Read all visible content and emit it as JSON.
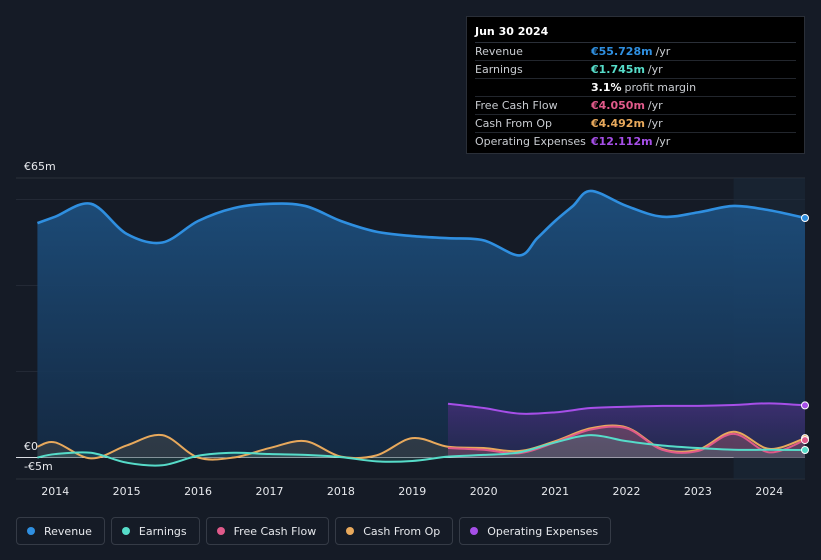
{
  "chart_data": {
    "type": "area",
    "currency": "€",
    "y_axis": {
      "top_label": "€65m",
      "zero_label": "€0",
      "bottom_label": "-€5m",
      "ylim": [
        -5,
        65
      ]
    },
    "x_ticks": [
      "2014",
      "2015",
      "2016",
      "2017",
      "2018",
      "2019",
      "2020",
      "2021",
      "2022",
      "2023",
      "2024"
    ],
    "series": [
      {
        "name": "Revenue",
        "color": "#2f8fe0",
        "x": [
          2013.75,
          2014.0,
          2014.5,
          2015.0,
          2015.5,
          2016.0,
          2016.5,
          2017.0,
          2017.5,
          2018.0,
          2018.5,
          2019.0,
          2019.5,
          2020.0,
          2020.5,
          2020.75,
          2021.0,
          2021.25,
          2021.5,
          2022.0,
          2022.5,
          2023.0,
          2023.5,
          2024.0,
          2024.5
        ],
        "values": [
          54.5,
          56,
          59,
          52,
          50,
          55,
          58,
          59,
          58.5,
          55,
          52.5,
          51.5,
          51,
          50.5,
          47,
          51,
          55,
          58.5,
          62,
          58.5,
          56,
          57,
          58.5,
          57.5,
          55.7
        ]
      },
      {
        "name": "Earnings",
        "color": "#56dcc9",
        "x": [
          2013.75,
          2014.0,
          2014.5,
          2015.0,
          2015.5,
          2016.0,
          2016.5,
          2017.0,
          2017.5,
          2018.0,
          2018.5,
          2019.0,
          2019.5,
          2020.0,
          2020.5,
          2021.0,
          2021.5,
          2022.0,
          2022.5,
          2023.0,
          2023.5,
          2024.0,
          2024.5
        ],
        "values": [
          0,
          0.8,
          1.1,
          -1.2,
          -1.8,
          0.4,
          1.1,
          0.8,
          0.6,
          0.1,
          -0.9,
          -0.8,
          0.2,
          0.6,
          1.2,
          3.5,
          5.2,
          3.8,
          2.8,
          2.2,
          1.8,
          1.8,
          1.745
        ]
      },
      {
        "name": "Free Cash Flow",
        "color": "#e05a8a",
        "x": [
          2019.5,
          2020.0,
          2020.5,
          2021.0,
          2021.5,
          2022.0,
          2022.5,
          2023.0,
          2023.5,
          2024.0,
          2024.5
        ],
        "values": [
          2.2,
          1.8,
          1.0,
          3.5,
          6.5,
          6.8,
          1.8,
          1.5,
          5.5,
          1.2,
          4.05
        ]
      },
      {
        "name": "Cash From Op",
        "color": "#e8a95c",
        "x": [
          2013.75,
          2014.0,
          2014.5,
          2015.0,
          2015.5,
          2016.0,
          2016.5,
          2017.0,
          2017.5,
          2018.0,
          2018.5,
          2019.0,
          2019.5,
          2020.0,
          2020.5,
          2021.0,
          2021.5,
          2022.0,
          2022.5,
          2023.0,
          2023.5,
          2024.0,
          2024.5
        ],
        "values": [
          2.5,
          3.5,
          -0.2,
          2.8,
          5.2,
          0,
          0,
          2.2,
          3.8,
          0.2,
          0.5,
          4.5,
          2.5,
          2.2,
          1.5,
          3.8,
          6.8,
          7.0,
          2.0,
          1.8,
          6.0,
          2.0,
          4.492
        ]
      },
      {
        "name": "Operating Expenses",
        "color": "#a64fe8",
        "x": [
          2019.5,
          2020.0,
          2020.5,
          2021.0,
          2021.5,
          2022.0,
          2022.5,
          2023.0,
          2023.5,
          2024.0,
          2024.5
        ],
        "values": [
          12.5,
          11.5,
          10.2,
          10.5,
          11.5,
          11.8,
          12.0,
          12.0,
          12.2,
          12.6,
          12.112
        ]
      }
    ]
  },
  "tooltip": {
    "date": "Jun 30 2024",
    "rows": [
      {
        "label": "Revenue",
        "value": "€55.728m",
        "unit": "/yr",
        "color": "#2f8fe0"
      },
      {
        "label": "Earnings",
        "value": "€1.745m",
        "unit": "/yr",
        "color": "#56dcc9"
      },
      {
        "label": "",
        "value": "3.1%",
        "unit": "profit margin",
        "color": "#ffffff"
      },
      {
        "label": "Free Cash Flow",
        "value": "€4.050m",
        "unit": "/yr",
        "color": "#e05a8a"
      },
      {
        "label": "Cash From Op",
        "value": "€4.492m",
        "unit": "/yr",
        "color": "#e8a95c"
      },
      {
        "label": "Operating Expenses",
        "value": "€12.112m",
        "unit": "/yr",
        "color": "#a64fe8"
      }
    ]
  },
  "legend": [
    {
      "label": "Revenue",
      "color": "#2f8fe0"
    },
    {
      "label": "Earnings",
      "color": "#56dcc9"
    },
    {
      "label": "Free Cash Flow",
      "color": "#e05a8a"
    },
    {
      "label": "Cash From Op",
      "color": "#e8a95c"
    },
    {
      "label": "Operating Expenses",
      "color": "#a64fe8"
    }
  ]
}
